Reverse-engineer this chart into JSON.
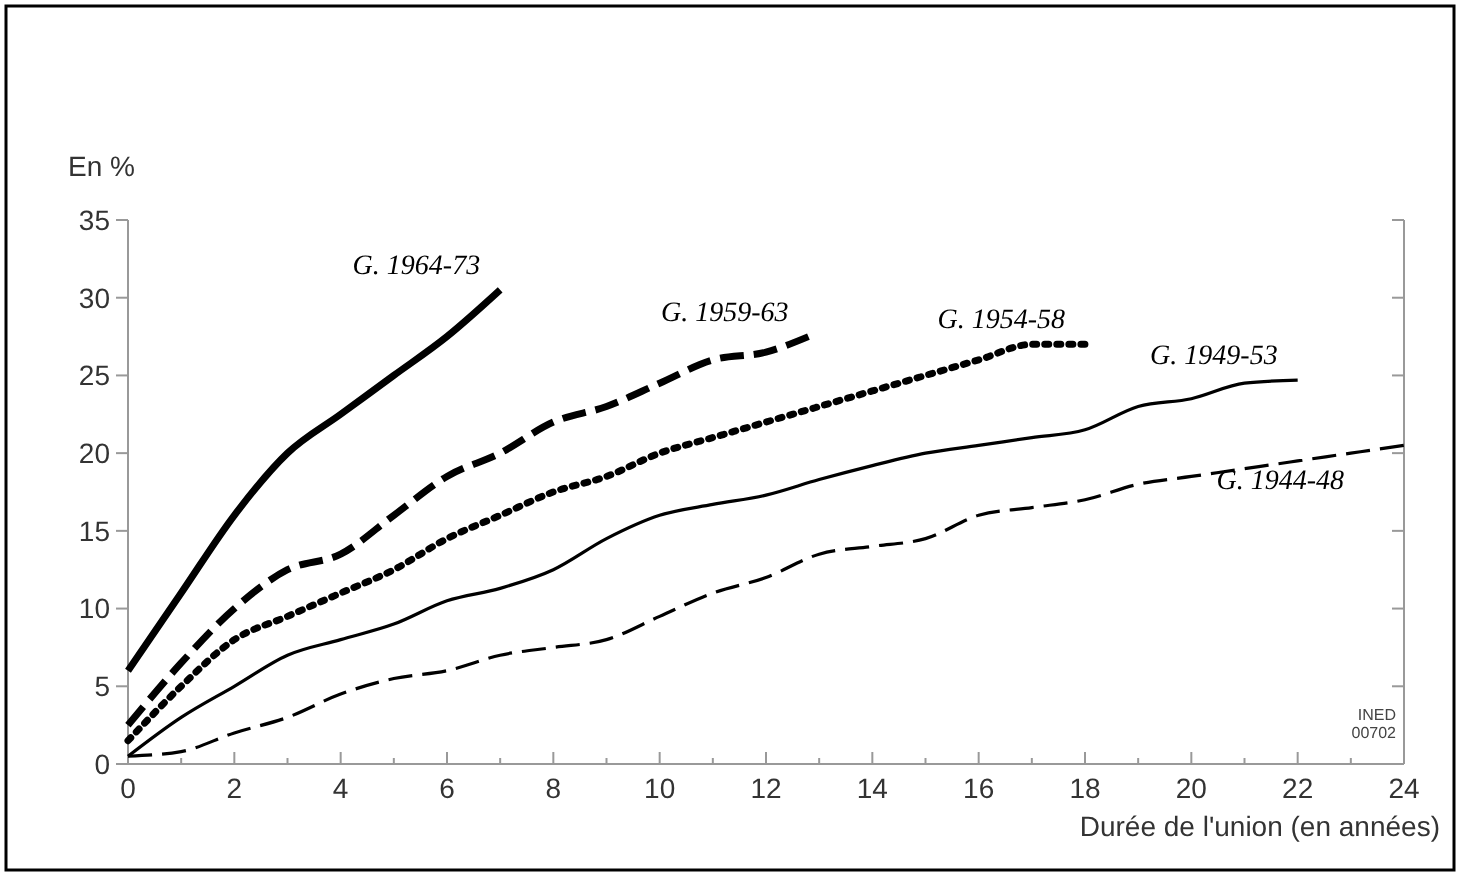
{
  "chart_data": {
    "type": "line",
    "ylabel": "En %",
    "xlabel": "Durée de l'union (en années)",
    "xlim": [
      0,
      24
    ],
    "ylim": [
      0,
      35
    ],
    "xticks": [
      0,
      {
        "value": 1,
        "label": null
      },
      2,
      {
        "value": 3,
        "label": null
      },
      4,
      {
        "value": 5,
        "label": null
      },
      6,
      {
        "value": 7,
        "label": null
      },
      8,
      {
        "value": 9,
        "label": null
      },
      10,
      {
        "value": 11,
        "label": null
      },
      12,
      {
        "value": 13,
        "label": null
      },
      14,
      {
        "value": 15,
        "label": null
      },
      16,
      {
        "value": 17,
        "label": null
      },
      18,
      {
        "value": 19,
        "label": null
      },
      20,
      {
        "value": 21,
        "label": null
      },
      22,
      {
        "value": 23,
        "label": null
      },
      24
    ],
    "yticks": [
      0,
      5,
      10,
      15,
      20,
      25,
      30,
      35
    ],
    "grid": false,
    "marker": "none",
    "annotations": [
      "INED\n00702"
    ],
    "series": [
      {
        "name": "G. 1964-73",
        "color": "#000000",
        "line_style": "solid",
        "x": [
          0,
          1,
          2,
          3,
          4,
          5,
          6,
          7
        ],
        "values": [
          6,
          11,
          16,
          20,
          22.5,
          25,
          27.5,
          30.5
        ]
      },
      {
        "name": "G. 1959-63",
        "color": "#000000",
        "line_style": "dashed",
        "x": [
          0,
          1,
          2,
          3,
          4,
          5,
          6,
          7,
          8,
          9,
          10,
          11,
          12,
          12.8
        ],
        "values": [
          2.5,
          6.5,
          10,
          12.5,
          13.5,
          16,
          18.5,
          20,
          22,
          23,
          24.5,
          26,
          26.5,
          27.5
        ]
      },
      {
        "name": "G. 1954-58",
        "color": "#000000",
        "line_style": "dotted",
        "x": [
          0,
          1,
          2,
          3,
          4,
          5,
          6,
          7,
          8,
          9,
          10,
          11,
          12,
          13,
          14,
          15,
          16,
          17,
          18
        ],
        "values": [
          1.5,
          5,
          8,
          9.5,
          11,
          12.5,
          14.5,
          16,
          17.5,
          18.5,
          20,
          21,
          22,
          23,
          24,
          25,
          26,
          27,
          27
        ]
      },
      {
        "name": "G. 1949-53",
        "color": "#000000",
        "line_style": "solid",
        "x": [
          0,
          1,
          2,
          3,
          4,
          5,
          6,
          7,
          8,
          9,
          10,
          11,
          12,
          13,
          14,
          15,
          16,
          17,
          18,
          19,
          20,
          21,
          22
        ],
        "values": [
          0.5,
          3,
          5,
          7,
          8,
          9,
          10.5,
          11.3,
          12.5,
          14.5,
          16,
          16.7,
          17.3,
          18.3,
          19.2,
          20,
          20.5,
          21,
          21.5,
          23,
          23.5,
          24.5,
          24.7
        ]
      },
      {
        "name": "G. 1944-48",
        "color": "#000000",
        "line_style": "dashed",
        "x": [
          0,
          1,
          2,
          3,
          4,
          5,
          6,
          7,
          8,
          9,
          10,
          11,
          12,
          13,
          14,
          15,
          16,
          17,
          18,
          19,
          20,
          21,
          22,
          23,
          24
        ],
        "values": [
          0.5,
          0.8,
          2,
          3,
          4.5,
          5.5,
          6,
          7,
          7.5,
          8,
          9.5,
          11,
          12,
          13.5,
          14,
          14.5,
          16,
          16.5,
          17,
          18,
          18.5,
          19,
          19.5,
          20,
          20.5
        ]
      }
    ]
  }
}
